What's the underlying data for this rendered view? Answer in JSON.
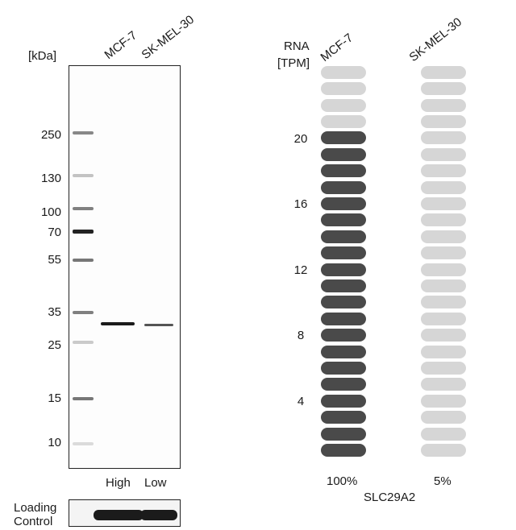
{
  "western_blot": {
    "unit_label": "[kDa]",
    "lanes": [
      "MCF-7",
      "SK-MEL-30"
    ],
    "markers": [
      "250",
      "130",
      "100",
      "70",
      "55",
      "35",
      "25",
      "15",
      "10"
    ],
    "lane_levels": [
      "High",
      "Low"
    ],
    "loading_control": [
      "Loading",
      "Control"
    ]
  },
  "rna": {
    "axis_label": [
      "RNA",
      "[TPM]"
    ],
    "cell_lines": [
      "MCF-7",
      "SK-MEL-30"
    ],
    "ticks": [
      "20",
      "16",
      "12",
      "8",
      "4"
    ],
    "percentages": [
      "100%",
      "5%"
    ],
    "gene": "SLC29A2",
    "total_pills": 24,
    "filled_pills": [
      20,
      0
    ],
    "colors": {
      "filled": "#4a4a4a",
      "empty": "#d6d6d6"
    }
  }
}
